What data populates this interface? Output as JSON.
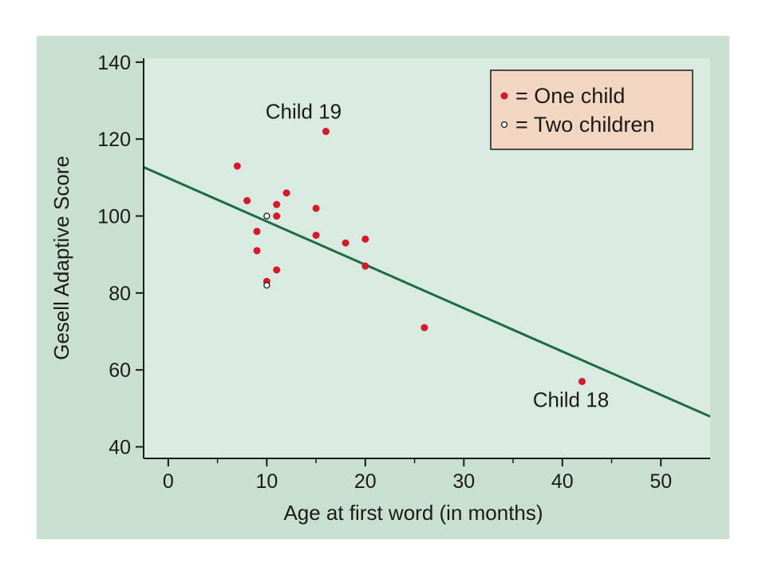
{
  "colors": {
    "outer_bg": "#c9dfd2",
    "plot_bg": "#d9ebe0",
    "axis": "#1a1a1a",
    "fit_line": "#1d6b45",
    "point_one_child": "#d6182a",
    "point_two_children": "#ffffff",
    "legend_bg": "#f2d6c2"
  },
  "chart_data": {
    "type": "scatter",
    "title": "",
    "xlabel": "Age at first word (in months)",
    "ylabel": "Gesell Adaptive Score",
    "xlim": [
      -2.5,
      55
    ],
    "ylim": [
      37,
      141
    ],
    "x_ticks": [
      0,
      10,
      20,
      30,
      40,
      50
    ],
    "y_ticks": [
      40,
      60,
      80,
      100,
      120,
      140
    ],
    "grid": false,
    "legend_position": "top-right",
    "series": [
      {
        "name": "= One child",
        "marker": "filled-red",
        "points": [
          {
            "x": 15,
            "y": 95
          },
          {
            "x": 26,
            "y": 71
          },
          {
            "x": 10,
            "y": 83
          },
          {
            "x": 9,
            "y": 91
          },
          {
            "x": 15,
            "y": 102
          },
          {
            "x": 20,
            "y": 87
          },
          {
            "x": 18,
            "y": 93
          },
          {
            "x": 11,
            "y": 100
          },
          {
            "x": 8,
            "y": 104
          },
          {
            "x": 20,
            "y": 94
          },
          {
            "x": 7,
            "y": 113
          },
          {
            "x": 9,
            "y": 96
          },
          {
            "x": 11,
            "y": 86
          },
          {
            "x": 11,
            "y": 103
          },
          {
            "x": 12,
            "y": 106
          },
          {
            "x": 16,
            "y": 122
          },
          {
            "x": 42,
            "y": 57
          }
        ]
      },
      {
        "name": "= Two children",
        "marker": "open-circle",
        "points": [
          {
            "x": 10,
            "y": 100
          },
          {
            "x": 10,
            "y": 82
          }
        ]
      }
    ],
    "regression_line": {
      "intercept": 109.87,
      "slope": -1.127
    },
    "annotations": [
      {
        "text": "Child 19",
        "x": 16,
        "y": 122
      },
      {
        "text": "Child 18",
        "x": 42,
        "y": 57
      }
    ]
  }
}
